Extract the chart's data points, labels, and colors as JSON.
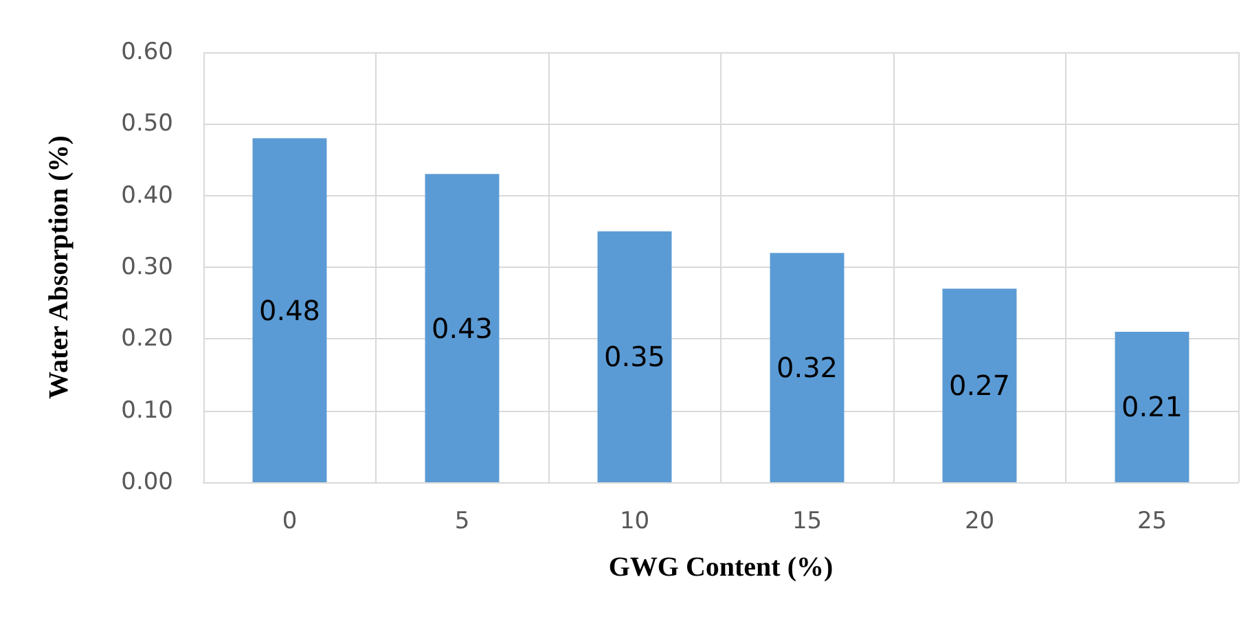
{
  "chart_data": {
    "type": "bar",
    "xlabel": "GWG Content (%)",
    "ylabel": "Water Absorption (%)",
    "categories": [
      "0",
      "5",
      "10",
      "15",
      "20",
      "25"
    ],
    "values": [
      0.48,
      0.43,
      0.35,
      0.32,
      0.27,
      0.21
    ],
    "color": "#5b9bd5",
    "data_labels": true,
    "grid": true,
    "ylim": [
      0,
      0.6
    ],
    "yticks": [
      {
        "value": 0,
        "label": "0.00"
      },
      {
        "value": 0.1,
        "label": "0.10"
      },
      {
        "value": 0.2,
        "label": "0.20"
      },
      {
        "value": 0.3,
        "label": "0.30"
      },
      {
        "value": 0.4,
        "label": "0.40"
      },
      {
        "value": 0.5,
        "label": "0.50"
      },
      {
        "value": 0.6,
        "label": "0.60"
      }
    ]
  }
}
